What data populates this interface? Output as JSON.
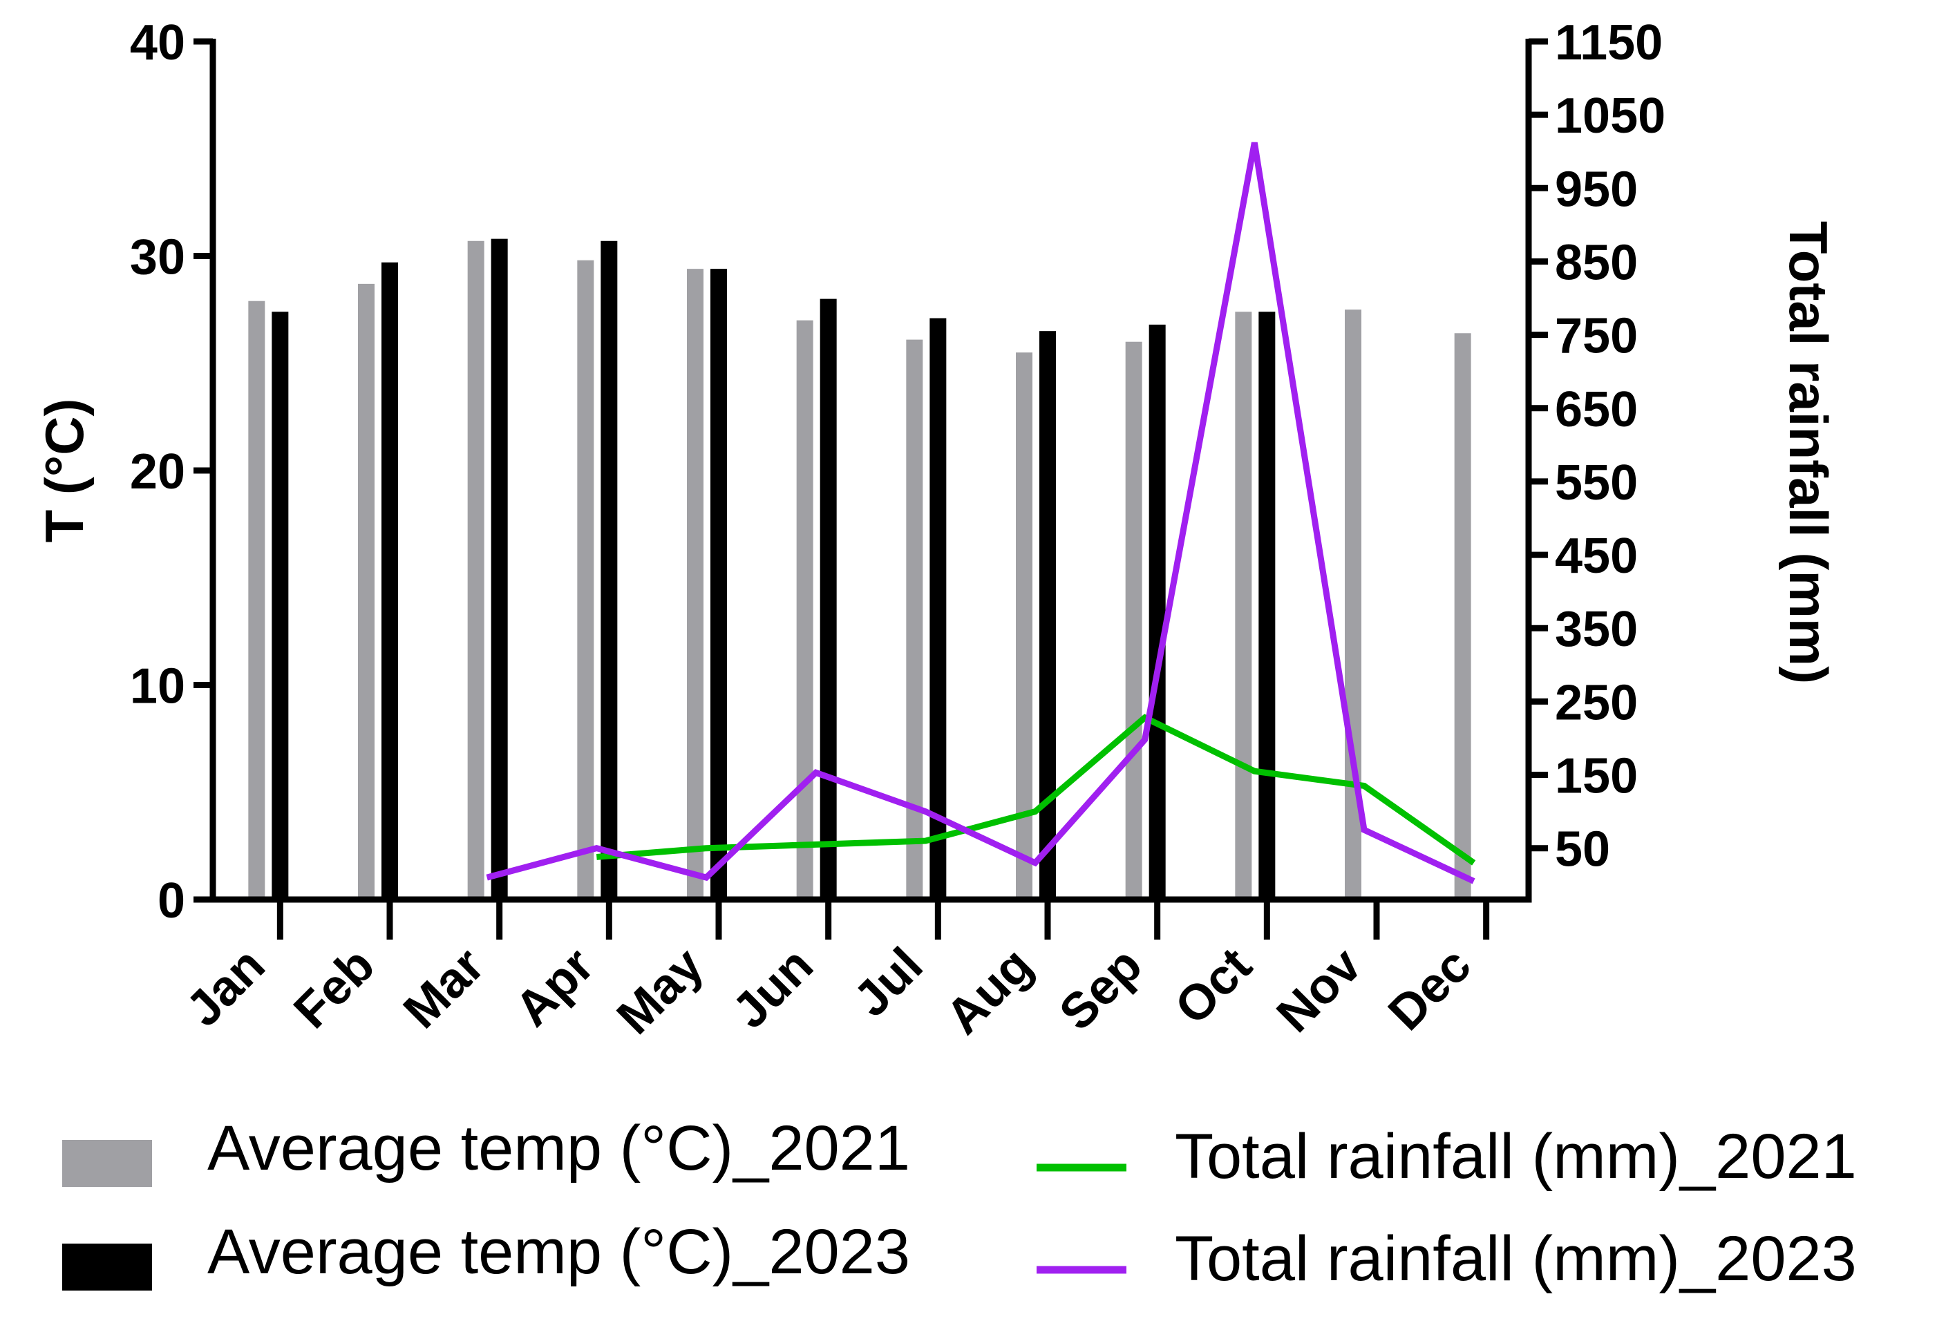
{
  "chart_data": {
    "type": "bar",
    "categories": [
      "Jan",
      "Feb",
      "Mar",
      "Apr",
      "May",
      "Jun",
      "Jul",
      "Aug",
      "Sep",
      "Oct",
      "Nov",
      "Dec"
    ],
    "series": [
      {
        "name": "Average temp (°C)_2021",
        "kind": "bar",
        "axis": "left",
        "color": "#a0a0a4",
        "values": [
          27.9,
          28.7,
          30.7,
          29.8,
          29.4,
          27.0,
          26.1,
          25.5,
          26.0,
          27.4,
          27.5,
          26.4
        ]
      },
      {
        "name": "Average temp (°C)_2023",
        "kind": "bar",
        "axis": "left",
        "color": "#000000",
        "values": [
          27.4,
          29.7,
          30.8,
          30.7,
          29.4,
          28.0,
          27.1,
          26.5,
          26.8,
          27.4,
          null,
          null
        ]
      },
      {
        "name": "Total rainfall (mm)_2021",
        "kind": "line",
        "axis": "right",
        "color": "#00c000",
        "values": [
          null,
          null,
          null,
          38,
          50,
          55,
          60,
          100,
          228,
          155,
          135,
          30
        ]
      },
      {
        "name": "Total rainfall (mm)_2023",
        "kind": "line",
        "axis": "right",
        "color": "#a020f0",
        "values": [
          null,
          null,
          10,
          50,
          10,
          153,
          100,
          30,
          198,
          1012,
          75,
          5
        ]
      }
    ],
    "left_axis": {
      "label": "T (°C)",
      "range": [
        0,
        40
      ],
      "ticks": [
        "0",
        "10",
        "20",
        "30",
        "40"
      ]
    },
    "right_axis": {
      "label": "Total rainfall (mm)",
      "range": [
        -20,
        1150
      ],
      "ticks": [
        "50",
        "150",
        "250",
        "350",
        "450",
        "550",
        "650",
        "750",
        "850",
        "950",
        "1050",
        "1150"
      ]
    },
    "legend": [
      {
        "label": "Average temp (°C)_2021",
        "symbol": "box",
        "color": "#a0a0a4"
      },
      {
        "label": "Average temp (°C)_2023",
        "symbol": "box",
        "color": "#000000"
      },
      {
        "label": "Total rainfall (mm)_2021",
        "symbol": "line",
        "color": "#00c000"
      },
      {
        "label": "Total rainfall (mm)_2023",
        "symbol": "line",
        "color": "#a020f0"
      }
    ],
    "legend_position": "bottom"
  }
}
